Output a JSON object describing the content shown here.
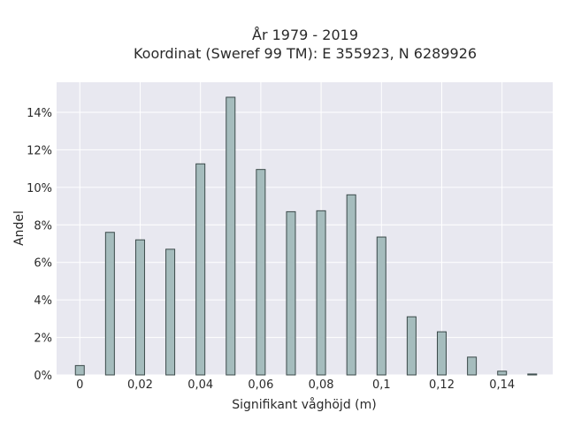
{
  "chart_data": {
    "type": "bar",
    "title": "År 1979 - 2019",
    "subtitle": "Koordinat (Sweref 99 TM): E 355923, N 6289926",
    "xlabel": "Signifikant våghöjd (m)",
    "ylabel": "Andel",
    "x": [
      0,
      0.01,
      0.02,
      0.03,
      0.04,
      0.05,
      0.06,
      0.07,
      0.08,
      0.09,
      0.1,
      0.11,
      0.12,
      0.13,
      0.14,
      0.15
    ],
    "values": [
      0.5,
      7.6,
      7.2,
      6.7,
      11.25,
      14.8,
      10.95,
      8.7,
      8.75,
      9.6,
      7.35,
      3.1,
      2.3,
      0.95,
      0.2,
      0.05
    ],
    "xlim": [
      -0.0077,
      0.1568
    ],
    "ylim": [
      0,
      15.6
    ],
    "x_ticks": [
      0,
      0.02,
      0.04,
      0.06,
      0.08,
      0.1,
      0.12,
      0.14
    ],
    "x_tick_labels": [
      "0",
      "0,02",
      "0,04",
      "0,06",
      "0,08",
      "0,1",
      "0,12",
      "0,14"
    ],
    "y_ticks": [
      0,
      2,
      4,
      6,
      8,
      10,
      12,
      14
    ],
    "y_tick_labels": [
      "0%",
      "2%",
      "4%",
      "6%",
      "8%",
      "10%",
      "12%",
      "14%"
    ],
    "grid": true,
    "colors": {
      "bar_fill": "#a5bcbd",
      "bar_stroke": "#3b4a4a",
      "plot_bg": "#e8e8f0",
      "grid": "#ffffff"
    }
  }
}
